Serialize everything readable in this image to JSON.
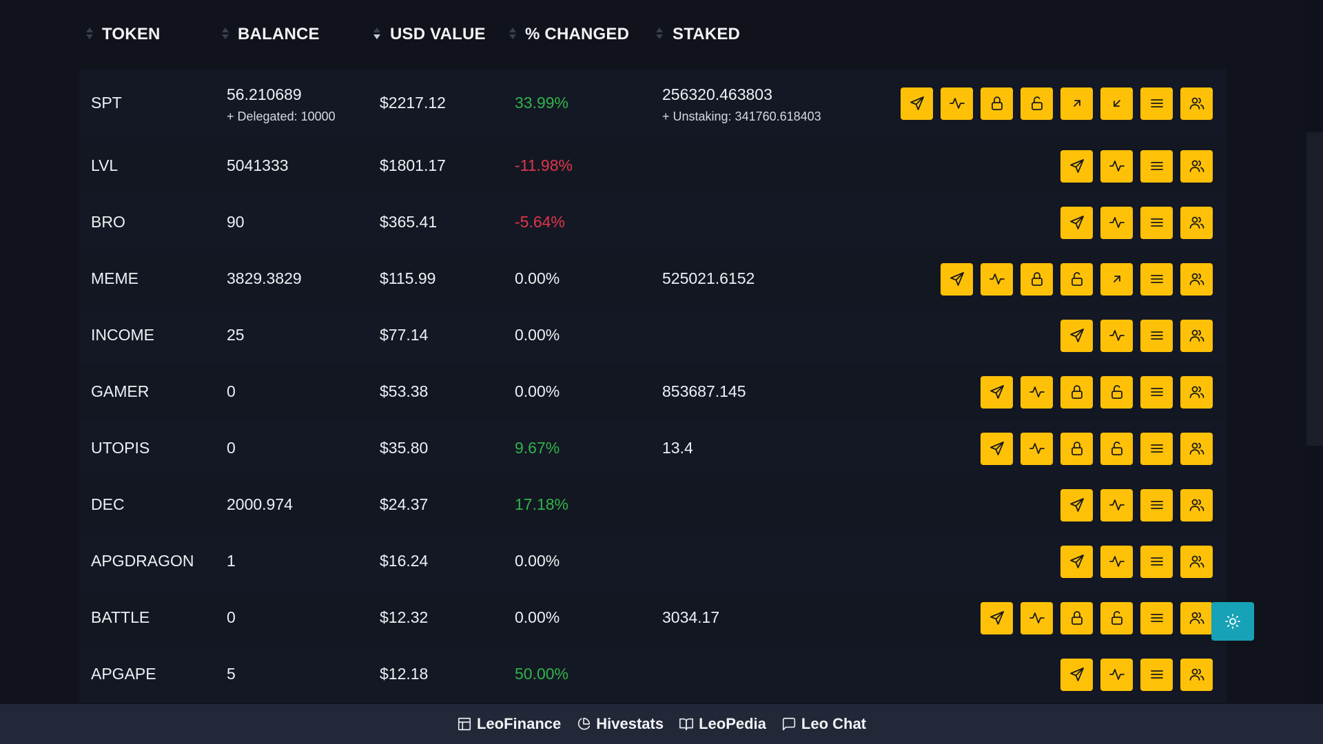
{
  "headers": {
    "token": "TOKEN",
    "balance": "BALANCE",
    "usd_value": "USD VALUE",
    "changed": "% CHANGED",
    "staked": "STAKED"
  },
  "rows": [
    {
      "token": "SPT",
      "balance": "56.210689",
      "balance_sub": "+ Delegated: 10000",
      "usd": "$2217.12",
      "change": "33.99%",
      "change_dir": "pos",
      "staked": "256320.463803",
      "staked_sub": "+ Unstaking: 341760.618403",
      "actions": [
        "send",
        "chart",
        "lock",
        "unlock",
        "delegate",
        "undelegate",
        "menu",
        "users"
      ]
    },
    {
      "token": "LVL",
      "balance": "5041333",
      "balance_sub": "",
      "usd": "$1801.17",
      "change": "-11.98%",
      "change_dir": "neg",
      "staked": "",
      "staked_sub": "",
      "actions": [
        "send",
        "chart",
        "menu",
        "users"
      ]
    },
    {
      "token": "BRO",
      "balance": "90",
      "balance_sub": "",
      "usd": "$365.41",
      "change": "-5.64%",
      "change_dir": "neg",
      "staked": "",
      "staked_sub": "",
      "actions": [
        "send",
        "chart",
        "menu",
        "users"
      ]
    },
    {
      "token": "MEME",
      "balance": "3829.3829",
      "balance_sub": "",
      "usd": "$115.99",
      "change": "0.00%",
      "change_dir": "zero",
      "staked": "525021.6152",
      "staked_sub": "",
      "actions": [
        "send",
        "chart",
        "lock",
        "unlock",
        "delegate",
        "menu",
        "users"
      ]
    },
    {
      "token": "INCOME",
      "balance": "25",
      "balance_sub": "",
      "usd": "$77.14",
      "change": "0.00%",
      "change_dir": "zero",
      "staked": "",
      "staked_sub": "",
      "actions": [
        "send",
        "chart",
        "menu",
        "users"
      ]
    },
    {
      "token": "GAMER",
      "balance": "0",
      "balance_sub": "",
      "usd": "$53.38",
      "change": "0.00%",
      "change_dir": "zero",
      "staked": "853687.145",
      "staked_sub": "",
      "actions": [
        "send",
        "chart",
        "lock",
        "unlock",
        "menu",
        "users"
      ]
    },
    {
      "token": "UTOPIS",
      "balance": "0",
      "balance_sub": "",
      "usd": "$35.80",
      "change": "9.67%",
      "change_dir": "pos",
      "staked": "13.4",
      "staked_sub": "",
      "actions": [
        "send",
        "chart",
        "lock",
        "unlock",
        "menu",
        "users"
      ]
    },
    {
      "token": "DEC",
      "balance": "2000.974",
      "balance_sub": "",
      "usd": "$24.37",
      "change": "17.18%",
      "change_dir": "pos",
      "staked": "",
      "staked_sub": "",
      "actions": [
        "send",
        "chart",
        "menu",
        "users"
      ]
    },
    {
      "token": "APGDRAGON",
      "balance": "1",
      "balance_sub": "",
      "usd": "$16.24",
      "change": "0.00%",
      "change_dir": "zero",
      "staked": "",
      "staked_sub": "",
      "actions": [
        "send",
        "chart",
        "menu",
        "users"
      ]
    },
    {
      "token": "BATTLE",
      "balance": "0",
      "balance_sub": "",
      "usd": "$12.32",
      "change": "0.00%",
      "change_dir": "zero",
      "staked": "3034.17",
      "staked_sub": "",
      "actions": [
        "send",
        "chart",
        "lock",
        "unlock",
        "menu",
        "users"
      ]
    },
    {
      "token": "APGAPE",
      "balance": "5",
      "balance_sub": "",
      "usd": "$12.18",
      "change": "50.00%",
      "change_dir": "pos",
      "staked": "",
      "staked_sub": "",
      "actions": [
        "send",
        "chart",
        "menu",
        "users"
      ]
    }
  ],
  "colors": {
    "background": "#10131c",
    "action_button": "#ffc107",
    "positive": "#2fb34a",
    "negative": "#e0364a",
    "theme_toggle": "#17a2b8",
    "footer": "#222838"
  },
  "theme_toggle_icon": "sun-icon",
  "footer": {
    "links": [
      {
        "label": "LeoFinance",
        "icon": "layout-icon"
      },
      {
        "label": "Hivestats",
        "icon": "pie-chart-icon"
      },
      {
        "label": "LeoPedia",
        "icon": "book-icon"
      },
      {
        "label": "Leo Chat",
        "icon": "chat-icon"
      }
    ]
  }
}
